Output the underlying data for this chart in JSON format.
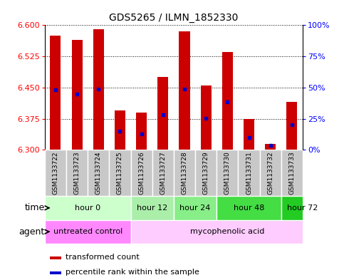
{
  "title": "GDS5265 / ILMN_1852330",
  "samples": [
    "GSM1133722",
    "GSM1133723",
    "GSM1133724",
    "GSM1133725",
    "GSM1133726",
    "GSM1133727",
    "GSM1133728",
    "GSM1133729",
    "GSM1133730",
    "GSM1133731",
    "GSM1133732",
    "GSM1133733"
  ],
  "bar_tops": [
    6.575,
    6.565,
    6.59,
    6.395,
    6.39,
    6.475,
    6.585,
    6.455,
    6.535,
    6.375,
    6.315,
    6.415
  ],
  "percentile_values": [
    6.445,
    6.435,
    6.447,
    6.345,
    6.338,
    6.385,
    6.447,
    6.376,
    6.415,
    6.33,
    6.31,
    6.36
  ],
  "bar_color": "#CC0000",
  "marker_color": "#0000CC",
  "base": 6.3,
  "ylim": [
    6.3,
    6.6
  ],
  "yticks": [
    6.3,
    6.375,
    6.45,
    6.525,
    6.6
  ],
  "right_yticks": [
    0,
    25,
    50,
    75,
    100
  ],
  "time_groups": [
    {
      "label": "hour 0",
      "start": 0,
      "end": 4
    },
    {
      "label": "hour 12",
      "start": 4,
      "end": 6
    },
    {
      "label": "hour 24",
      "start": 6,
      "end": 8
    },
    {
      "label": "hour 48",
      "start": 8,
      "end": 11
    },
    {
      "label": "hour 72",
      "start": 11,
      "end": 13
    }
  ],
  "time_colors": [
    "#ccffcc",
    "#aaeeaa",
    "#88ee88",
    "#44dd44",
    "#22cc22"
  ],
  "agent_groups": [
    {
      "label": "untreated control",
      "start": 0,
      "end": 4
    },
    {
      "label": "mycophenolic acid",
      "start": 4,
      "end": 13
    }
  ],
  "agent_colors": [
    "#ff88ff",
    "#ffccff"
  ],
  "sample_bg_color": "#c8c8c8",
  "sample_sep_color": "#ffffff"
}
